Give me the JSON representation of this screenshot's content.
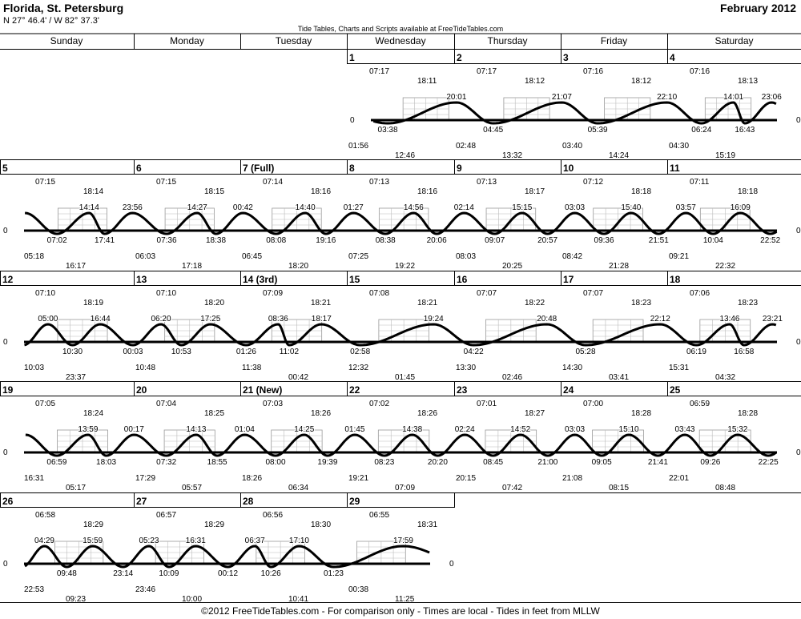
{
  "header": {
    "location": "Florida, St. Petersburg",
    "coordinates": "N 27° 46.4' / W 82° 37.3'",
    "month": "February 2012",
    "credit": "Tide Tables, Charts and Scripts available at FreeTideTables.com"
  },
  "weekdays": [
    "Sunday",
    "Monday",
    "Tuesday",
    "Wednesday",
    "Thursday",
    "Friday",
    "Saturday"
  ],
  "footer": "©2012 FreeTideTables.com - For comparison only - Times are local - Tides in feet from MLLW",
  "chart_data": {
    "type": "line",
    "description_units": "tide height (ft, MLLW) vs time; times local",
    "zero_label": "0",
    "days": [
      {
        "day": 1,
        "label": "1",
        "sunrise": "07:17",
        "sunset": "18:11",
        "moonrise": "12:46",
        "moonset": "01:56",
        "tides": [
          {
            "time": "03:38",
            "type": "low"
          },
          {
            "time": "20:01",
            "type": "high"
          }
        ]
      },
      {
        "day": 2,
        "label": "2",
        "sunrise": "07:17",
        "sunset": "18:12",
        "moonrise": "13:32",
        "moonset": "02:48",
        "tides": [
          {
            "time": "04:45",
            "type": "low"
          },
          {
            "time": "21:07",
            "type": "high"
          }
        ]
      },
      {
        "day": 3,
        "label": "3",
        "sunrise": "07:16",
        "sunset": "18:12",
        "moonrise": "14:24",
        "moonset": "03:40",
        "tides": [
          {
            "time": "05:39",
            "type": "low"
          },
          {
            "time": "22:10",
            "type": "high"
          }
        ]
      },
      {
        "day": 4,
        "label": "4",
        "sunrise": "07:16",
        "sunset": "18:13",
        "moonrise": "15:19",
        "moonset": "04:30",
        "tides": [
          {
            "time": "06:24",
            "type": "low"
          },
          {
            "time": "14:01",
            "type": "high"
          },
          {
            "time": "16:43",
            "type": "low"
          },
          {
            "time": "23:06",
            "type": "high"
          }
        ]
      },
      {
        "day": 5,
        "label": "5",
        "sunrise": "07:15",
        "sunset": "18:14",
        "moonrise": "16:17",
        "moonset": "05:18",
        "tides": [
          {
            "time": "07:02",
            "type": "low"
          },
          {
            "time": "14:14",
            "type": "high"
          },
          {
            "time": "17:41",
            "type": "low"
          },
          {
            "time": "23:56",
            "type": "high"
          }
        ]
      },
      {
        "day": 6,
        "label": "6",
        "sunrise": "07:15",
        "sunset": "18:15",
        "moonrise": "17:18",
        "moonset": "06:03",
        "tides": [
          {
            "time": "07:36",
            "type": "low"
          },
          {
            "time": "14:27",
            "type": "high"
          },
          {
            "time": "18:38",
            "type": "low"
          }
        ]
      },
      {
        "day": 7,
        "label": "7 (Full)",
        "sunrise": "07:14",
        "sunset": "18:16",
        "moonrise": "18:20",
        "moonset": "06:45",
        "tides": [
          {
            "time": "00:42",
            "type": "high"
          },
          {
            "time": "08:08",
            "type": "low"
          },
          {
            "time": "14:40",
            "type": "high"
          },
          {
            "time": "19:16",
            "type": "low"
          }
        ]
      },
      {
        "day": 8,
        "label": "8",
        "sunrise": "07:13",
        "sunset": "18:16",
        "moonrise": "19:22",
        "moonset": "07:25",
        "tides": [
          {
            "time": "01:27",
            "type": "high"
          },
          {
            "time": "08:38",
            "type": "low"
          },
          {
            "time": "14:56",
            "type": "high"
          },
          {
            "time": "20:06",
            "type": "low"
          }
        ]
      },
      {
        "day": 9,
        "label": "9",
        "sunrise": "07:13",
        "sunset": "18:17",
        "moonrise": "20:25",
        "moonset": "08:03",
        "tides": [
          {
            "time": "02:14",
            "type": "high"
          },
          {
            "time": "09:07",
            "type": "low"
          },
          {
            "time": "15:15",
            "type": "high"
          },
          {
            "time": "20:57",
            "type": "low"
          }
        ]
      },
      {
        "day": 10,
        "label": "10",
        "sunrise": "07:12",
        "sunset": "18:18",
        "moonrise": "21:28",
        "moonset": "08:42",
        "tides": [
          {
            "time": "03:03",
            "type": "high"
          },
          {
            "time": "09:36",
            "type": "low"
          },
          {
            "time": "15:40",
            "type": "high"
          },
          {
            "time": "21:51",
            "type": "low"
          }
        ]
      },
      {
        "day": 11,
        "label": "11",
        "sunrise": "07:11",
        "sunset": "18:18",
        "moonrise": "22:32",
        "moonset": "09:21",
        "tides": [
          {
            "time": "03:57",
            "type": "high"
          },
          {
            "time": "10:04",
            "type": "low"
          },
          {
            "time": "16:09",
            "type": "high"
          },
          {
            "time": "22:52",
            "type": "low"
          }
        ]
      },
      {
        "day": 12,
        "label": "12",
        "sunrise": "07:10",
        "sunset": "18:19",
        "moonrise": "23:37",
        "moonset": "10:03",
        "tides": [
          {
            "time": "05:00",
            "type": "high"
          },
          {
            "time": "10:30",
            "type": "low"
          },
          {
            "time": "16:44",
            "type": "high"
          }
        ]
      },
      {
        "day": 13,
        "label": "13",
        "sunrise": "07:10",
        "sunset": "18:20",
        "moonrise": "",
        "moonset": "10:48",
        "tides": [
          {
            "time": "00:03",
            "type": "low"
          },
          {
            "time": "06:20",
            "type": "high"
          },
          {
            "time": "10:53",
            "type": "low"
          },
          {
            "time": "17:25",
            "type": "high"
          }
        ]
      },
      {
        "day": 14,
        "label": "14 (3rd)",
        "sunrise": "07:09",
        "sunset": "18:21",
        "moonrise": "00:42",
        "moonset": "11:38",
        "tides": [
          {
            "time": "01:26",
            "type": "low"
          },
          {
            "time": "08:36",
            "type": "high"
          },
          {
            "time": "11:02",
            "type": "low"
          },
          {
            "time": "18:17",
            "type": "high"
          }
        ]
      },
      {
        "day": 15,
        "label": "15",
        "sunrise": "07:08",
        "sunset": "18:21",
        "moonrise": "01:45",
        "moonset": "12:32",
        "tides": [
          {
            "time": "02:58",
            "type": "low"
          },
          {
            "time": "19:24",
            "type": "high"
          }
        ]
      },
      {
        "day": 16,
        "label": "16",
        "sunrise": "07:07",
        "sunset": "18:22",
        "moonrise": "02:46",
        "moonset": "13:30",
        "tides": [
          {
            "time": "04:22",
            "type": "low"
          },
          {
            "time": "20:48",
            "type": "high"
          }
        ]
      },
      {
        "day": 17,
        "label": "17",
        "sunrise": "07:07",
        "sunset": "18:23",
        "moonrise": "03:41",
        "moonset": "14:30",
        "tides": [
          {
            "time": "05:28",
            "type": "low"
          },
          {
            "time": "22:12",
            "type": "high"
          }
        ]
      },
      {
        "day": 18,
        "label": "18",
        "sunrise": "07:06",
        "sunset": "18:23",
        "moonrise": "04:32",
        "moonset": "15:31",
        "tides": [
          {
            "time": "06:19",
            "type": "low"
          },
          {
            "time": "13:46",
            "type": "high"
          },
          {
            "time": "16:58",
            "type": "low"
          },
          {
            "time": "23:21",
            "type": "high"
          }
        ]
      },
      {
        "day": 19,
        "label": "19",
        "sunrise": "07:05",
        "sunset": "18:24",
        "moonrise": "05:17",
        "moonset": "16:31",
        "tides": [
          {
            "time": "06:59",
            "type": "low"
          },
          {
            "time": "13:59",
            "type": "high"
          },
          {
            "time": "18:03",
            "type": "low"
          }
        ]
      },
      {
        "day": 20,
        "label": "20",
        "sunrise": "07:04",
        "sunset": "18:25",
        "moonrise": "05:57",
        "moonset": "17:29",
        "tides": [
          {
            "time": "00:17",
            "type": "high"
          },
          {
            "time": "07:32",
            "type": "low"
          },
          {
            "time": "14:13",
            "type": "high"
          },
          {
            "time": "18:55",
            "type": "low"
          }
        ]
      },
      {
        "day": 21,
        "label": "21 (New)",
        "sunrise": "07:03",
        "sunset": "18:26",
        "moonrise": "06:34",
        "moonset": "18:26",
        "tides": [
          {
            "time": "01:04",
            "type": "high"
          },
          {
            "time": "08:00",
            "type": "low"
          },
          {
            "time": "14:25",
            "type": "high"
          },
          {
            "time": "19:39",
            "type": "low"
          }
        ]
      },
      {
        "day": 22,
        "label": "22",
        "sunrise": "07:02",
        "sunset": "18:26",
        "moonrise": "07:09",
        "moonset": "19:21",
        "tides": [
          {
            "time": "01:45",
            "type": "high"
          },
          {
            "time": "08:23",
            "type": "low"
          },
          {
            "time": "14:38",
            "type": "high"
          },
          {
            "time": "20:20",
            "type": "low"
          }
        ]
      },
      {
        "day": 23,
        "label": "23",
        "sunrise": "07:01",
        "sunset": "18:27",
        "moonrise": "07:42",
        "moonset": "20:15",
        "tides": [
          {
            "time": "02:24",
            "type": "high"
          },
          {
            "time": "08:45",
            "type": "low"
          },
          {
            "time": "14:52",
            "type": "high"
          },
          {
            "time": "21:00",
            "type": "low"
          }
        ]
      },
      {
        "day": 24,
        "label": "24",
        "sunrise": "07:00",
        "sunset": "18:28",
        "moonrise": "08:15",
        "moonset": "21:08",
        "tides": [
          {
            "time": "03:03",
            "type": "high"
          },
          {
            "time": "09:05",
            "type": "low"
          },
          {
            "time": "15:10",
            "type": "high"
          },
          {
            "time": "21:41",
            "type": "low"
          }
        ]
      },
      {
        "day": 25,
        "label": "25",
        "sunrise": "06:59",
        "sunset": "18:28",
        "moonrise": "08:48",
        "moonset": "22:01",
        "tides": [
          {
            "time": "03:43",
            "type": "high"
          },
          {
            "time": "09:26",
            "type": "low"
          },
          {
            "time": "15:32",
            "type": "high"
          },
          {
            "time": "22:25",
            "type": "low"
          }
        ]
      },
      {
        "day": 26,
        "label": "26",
        "sunrise": "06:58",
        "sunset": "18:29",
        "moonrise": "09:23",
        "moonset": "22:53",
        "tides": [
          {
            "time": "04:29",
            "type": "high"
          },
          {
            "time": "09:48",
            "type": "low"
          },
          {
            "time": "15:59",
            "type": "high"
          },
          {
            "time": "23:14",
            "type": "low"
          }
        ]
      },
      {
        "day": 27,
        "label": "27",
        "sunrise": "06:57",
        "sunset": "18:29",
        "moonrise": "10:00",
        "moonset": "23:46",
        "tides": [
          {
            "time": "05:23",
            "type": "high"
          },
          {
            "time": "10:09",
            "type": "low"
          },
          {
            "time": "16:31",
            "type": "high"
          }
        ]
      },
      {
        "day": 28,
        "label": "28",
        "sunrise": "06:56",
        "sunset": "18:30",
        "moonrise": "10:41",
        "moonset": "",
        "tides": [
          {
            "time": "00:12",
            "type": "low"
          },
          {
            "time": "06:37",
            "type": "high"
          },
          {
            "time": "10:26",
            "type": "low"
          },
          {
            "time": "17:10",
            "type": "high"
          }
        ]
      },
      {
        "day": 29,
        "label": "29",
        "sunrise": "06:55",
        "sunset": "18:31",
        "moonrise": "11:25",
        "moonset": "00:38",
        "tides": [
          {
            "time": "01:23",
            "type": "low"
          },
          {
            "time": "17:59",
            "type": "high"
          }
        ]
      }
    ]
  }
}
